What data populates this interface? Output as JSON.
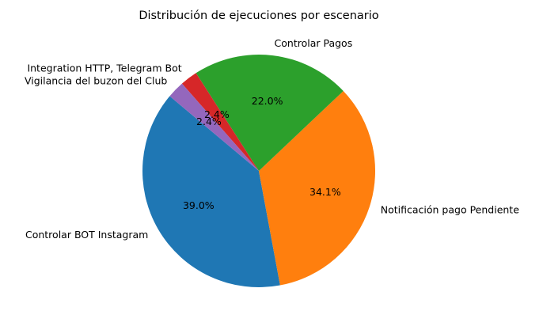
{
  "chart_data": {
    "type": "pie",
    "title": "Distribución de ejecuciones por escenario",
    "slices": [
      {
        "label": "Controlar BOT Instagram",
        "value": 39.0,
        "pct_label": "39.0%",
        "color": "#1f77b4"
      },
      {
        "label": "Notificación pago Pendiente",
        "value": 34.1,
        "pct_label": "34.1%",
        "color": "#ff7f0e"
      },
      {
        "label": "Controlar Pagos",
        "value": 22.0,
        "pct_label": "22.0%",
        "color": "#2ca02c"
      },
      {
        "label": "Integration HTTP, Telegram Bot",
        "value": 2.4,
        "pct_label": "2.4%",
        "color": "#d62728"
      },
      {
        "label": "Vigilancia del buzon del Club",
        "value": 2.4,
        "pct_label": "2.4%",
        "color": "#9467bd"
      }
    ],
    "start_angle_deg": 140,
    "direction": "counterclockwise",
    "legend": "none"
  }
}
